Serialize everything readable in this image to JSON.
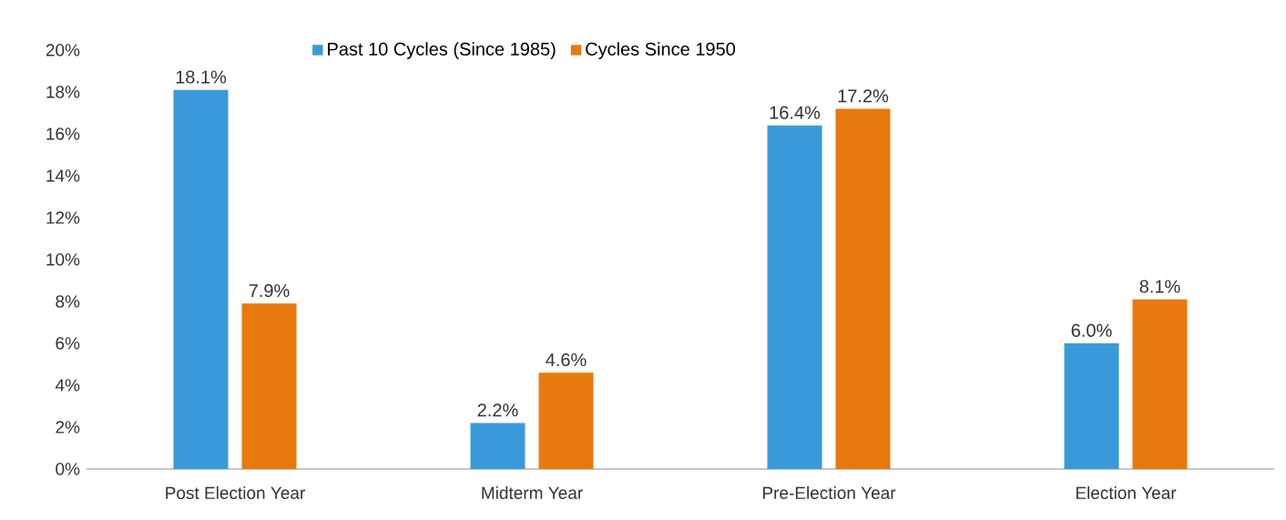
{
  "chart_data": {
    "type": "bar",
    "categories": [
      "Post Election Year",
      "Midterm Year",
      "Pre-Election Year",
      "Election Year"
    ],
    "series": [
      {
        "name": "Past 10 Cycles (Since 1985)",
        "color": "#3a9ad9",
        "values": [
          18.1,
          2.2,
          16.4,
          6.0
        ],
        "value_labels": [
          "18.1%",
          "2.2%",
          "16.4%",
          "6.0%"
        ]
      },
      {
        "name": "Cycles Since 1950",
        "color": "#e8790c",
        "values": [
          7.9,
          4.6,
          17.2,
          8.1
        ],
        "value_labels": [
          "7.9%",
          "4.6%",
          "17.2%",
          "8.1%"
        ]
      }
    ],
    "ylim": [
      0,
      20
    ],
    "yticks": [
      {
        "value": 0,
        "label": "0%"
      },
      {
        "value": 2,
        "label": "2%"
      },
      {
        "value": 4,
        "label": "4%"
      },
      {
        "value": 6,
        "label": "6%"
      },
      {
        "value": 8,
        "label": "8%"
      },
      {
        "value": 10,
        "label": "10%"
      },
      {
        "value": 12,
        "label": "12%"
      },
      {
        "value": 14,
        "label": "14%"
      },
      {
        "value": 16,
        "label": "16%"
      },
      {
        "value": 18,
        "label": "18%"
      },
      {
        "value": 20,
        "label": "20%"
      }
    ],
    "grid": false,
    "legend": "top"
  }
}
